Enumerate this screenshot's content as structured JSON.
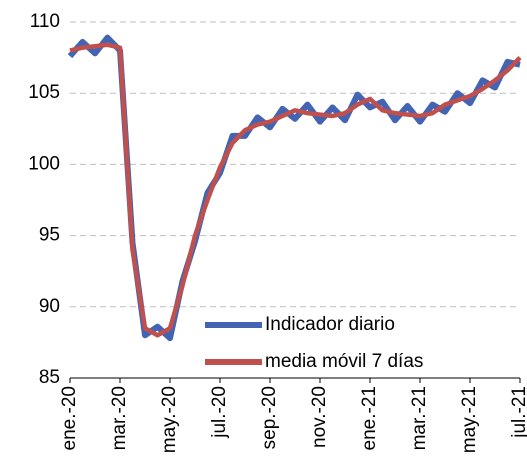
{
  "chart_data": {
    "type": "line",
    "categories": [
      "ene.-20",
      null,
      null,
      null,
      "mar.-20",
      null,
      null,
      null,
      "may.-20",
      null,
      null,
      null,
      "jul.-20",
      null,
      null,
      null,
      "sep.-20",
      null,
      null,
      null,
      "nov.-20",
      null,
      null,
      null,
      "ene.-21",
      null,
      null,
      null,
      "mar.-21",
      null,
      null,
      null,
      "may.-21",
      null,
      null,
      null,
      "jul.-21"
    ],
    "series": [
      {
        "name": "Indicador diario",
        "color": "#4363b3",
        "values": [
          107.6,
          108.6,
          107.8,
          108.9,
          108.0,
          94.5,
          88.0,
          88.6,
          87.8,
          91.8,
          94.6,
          98.0,
          99.4,
          102.0,
          102.0,
          103.3,
          102.6,
          103.9,
          103.2,
          104.2,
          103.0,
          104.0,
          103.1,
          104.9,
          104.0,
          104.4,
          103.1,
          104.1,
          103.0,
          104.2,
          103.7,
          105.0,
          104.3,
          105.9,
          105.4,
          107.2,
          107.0
        ]
      },
      {
        "name": "media móvil 7 días",
        "color": "#c0504d",
        "values": [
          108.0,
          108.2,
          108.3,
          108.4,
          108.2,
          94.0,
          88.5,
          88.0,
          88.5,
          91.5,
          95.0,
          97.5,
          99.8,
          101.5,
          102.4,
          102.8,
          103.0,
          103.4,
          103.8,
          103.6,
          103.5,
          103.4,
          103.6,
          104.2,
          104.6,
          103.8,
          103.6,
          103.5,
          103.4,
          103.6,
          104.2,
          104.5,
          104.8,
          105.3,
          105.9,
          106.6,
          107.5
        ]
      }
    ],
    "ylim": [
      85,
      110
    ],
    "yticks": [
      85,
      90,
      95,
      100,
      105,
      110
    ],
    "grid": true,
    "legend": "lower right"
  }
}
